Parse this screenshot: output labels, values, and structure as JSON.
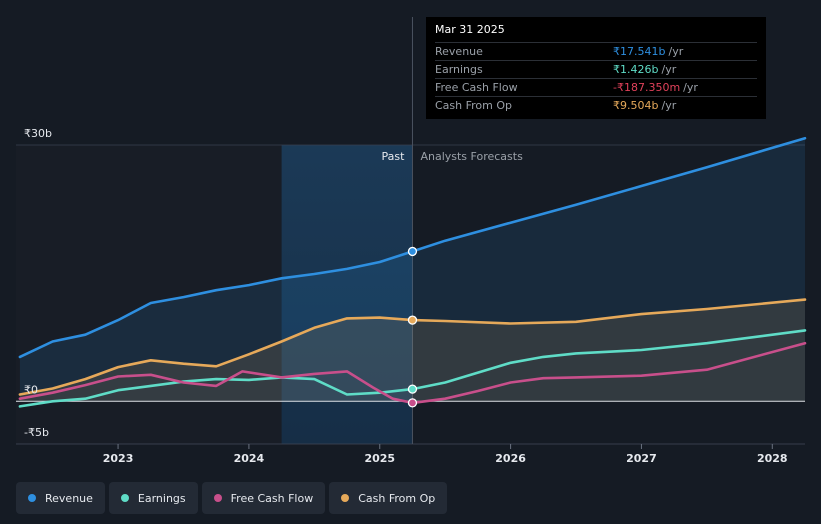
{
  "chart_data": {
    "type": "line",
    "currency": "₹",
    "y_tick_labels": [
      "₹30b",
      "₹0",
      "-₹5b"
    ],
    "y_ticks": [
      30,
      0,
      -5
    ],
    "ylim": [
      -5,
      30
    ],
    "xlim": [
      2022.22,
      2028.25
    ],
    "x_tick_labels": [
      "2023",
      "2024",
      "2025",
      "2026",
      "2027",
      "2028"
    ],
    "x_ticks": [
      2023,
      2024,
      2025,
      2026,
      2027,
      2028
    ],
    "past_start": 2024.25,
    "divider_x": 2025.25,
    "past_label": "Past",
    "forecast_label": "Analysts Forecasts",
    "series": [
      {
        "name": "Revenue",
        "color": "#2e8fe0",
        "area": true,
        "points": [
          [
            2022.25,
            5.2
          ],
          [
            2022.5,
            7.0
          ],
          [
            2022.75,
            7.8
          ],
          [
            2023.0,
            9.5
          ],
          [
            2023.25,
            11.5
          ],
          [
            2023.5,
            12.2
          ],
          [
            2023.75,
            13.0
          ],
          [
            2024.0,
            13.6
          ],
          [
            2024.25,
            14.4
          ],
          [
            2024.5,
            14.9
          ],
          [
            2024.75,
            15.5
          ],
          [
            2025.0,
            16.3
          ],
          [
            2025.25,
            17.541
          ],
          [
            2025.5,
            18.8
          ],
          [
            2026.0,
            20.9
          ],
          [
            2026.5,
            23.0
          ],
          [
            2027.0,
            25.2
          ],
          [
            2027.5,
            27.4
          ],
          [
            2028.25,
            30.8
          ]
        ]
      },
      {
        "name": "Earnings",
        "color": "#5fdcc7",
        "area": false,
        "points": [
          [
            2022.25,
            -0.6
          ],
          [
            2022.5,
            0.0
          ],
          [
            2022.75,
            0.3
          ],
          [
            2023.0,
            1.3
          ],
          [
            2023.25,
            1.8
          ],
          [
            2023.5,
            2.3
          ],
          [
            2023.75,
            2.6
          ],
          [
            2024.0,
            2.5
          ],
          [
            2024.25,
            2.8
          ],
          [
            2024.5,
            2.6
          ],
          [
            2024.75,
            0.8
          ],
          [
            2025.0,
            1.0
          ],
          [
            2025.25,
            1.426
          ],
          [
            2025.5,
            2.2
          ],
          [
            2026.0,
            4.5
          ],
          [
            2026.25,
            5.2
          ],
          [
            2026.5,
            5.6
          ],
          [
            2027.0,
            6.0
          ],
          [
            2027.5,
            6.8
          ],
          [
            2028.25,
            8.3
          ]
        ]
      },
      {
        "name": "Free Cash Flow",
        "color": "#c84f8b",
        "area": false,
        "points": [
          [
            2022.25,
            0.3
          ],
          [
            2022.5,
            1.0
          ],
          [
            2022.75,
            1.9
          ],
          [
            2023.0,
            2.9
          ],
          [
            2023.25,
            3.1
          ],
          [
            2023.5,
            2.2
          ],
          [
            2023.75,
            1.8
          ],
          [
            2023.95,
            3.5
          ],
          [
            2024.25,
            2.8
          ],
          [
            2024.5,
            3.2
          ],
          [
            2024.75,
            3.5
          ],
          [
            2024.95,
            1.6
          ],
          [
            2025.1,
            0.3
          ],
          [
            2025.25,
            -0.187
          ],
          [
            2025.5,
            0.3
          ],
          [
            2025.75,
            1.2
          ],
          [
            2026.0,
            2.2
          ],
          [
            2026.25,
            2.7
          ],
          [
            2026.5,
            2.8
          ],
          [
            2027.0,
            3.0
          ],
          [
            2027.5,
            3.7
          ],
          [
            2028.25,
            6.8
          ]
        ]
      },
      {
        "name": "Cash From Op",
        "color": "#e6a95a",
        "area": true,
        "points": [
          [
            2022.25,
            0.8
          ],
          [
            2022.5,
            1.5
          ],
          [
            2022.75,
            2.6
          ],
          [
            2023.0,
            4.0
          ],
          [
            2023.25,
            4.8
          ],
          [
            2023.5,
            4.4
          ],
          [
            2023.75,
            4.1
          ],
          [
            2024.0,
            5.5
          ],
          [
            2024.25,
            7.0
          ],
          [
            2024.5,
            8.6
          ],
          [
            2024.75,
            9.7
          ],
          [
            2025.0,
            9.8
          ],
          [
            2025.25,
            9.504
          ],
          [
            2025.5,
            9.4
          ],
          [
            2026.0,
            9.1
          ],
          [
            2026.5,
            9.3
          ],
          [
            2027.0,
            10.2
          ],
          [
            2027.5,
            10.8
          ],
          [
            2028.25,
            11.9
          ]
        ]
      }
    ]
  },
  "tooltip": {
    "date": "Mar 31 2025",
    "rows": [
      {
        "label": "Revenue",
        "value": "₹17.541b",
        "unit": "/yr",
        "color": "#2e8fe0"
      },
      {
        "label": "Earnings",
        "value": "₹1.426b",
        "unit": "/yr",
        "color": "#5fdcc7"
      },
      {
        "label": "Free Cash Flow",
        "value": "-₹187.350m",
        "unit": "/yr",
        "color": "#e0415a"
      },
      {
        "label": "Cash From Op",
        "value": "₹9.504b",
        "unit": "/yr",
        "color": "#e6a95a"
      }
    ]
  },
  "legend": [
    {
      "label": "Revenue",
      "color": "#2e8fe0"
    },
    {
      "label": "Earnings",
      "color": "#5fdcc7"
    },
    {
      "label": "Free Cash Flow",
      "color": "#c84f8b"
    },
    {
      "label": "Cash From Op",
      "color": "#e6a95a"
    }
  ]
}
